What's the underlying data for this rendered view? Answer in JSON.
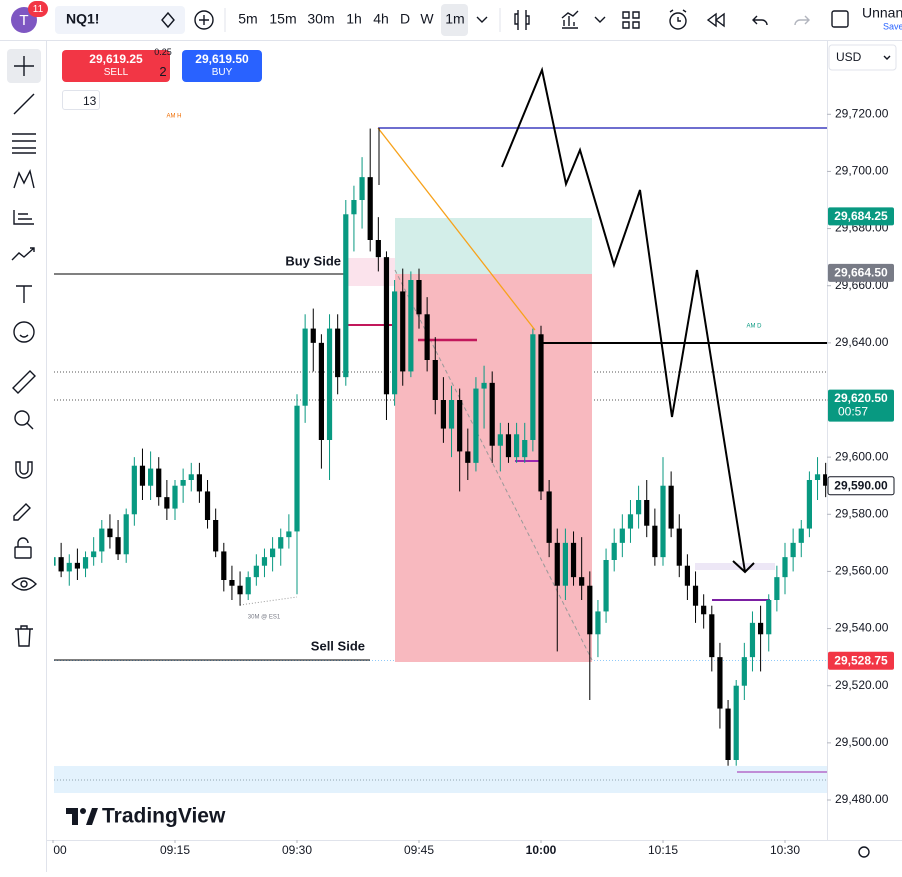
{
  "toolbar": {
    "avatar": "T",
    "notifications": "11",
    "symbol": "NQ1!",
    "intervals": [
      "5m",
      "15m",
      "30m",
      "1h",
      "4h",
      "D",
      "W",
      "1m"
    ],
    "layout_name": "Unnan",
    "save": "Save"
  },
  "order_panel": {
    "sell_price": "29,619.25",
    "sell": "SELL",
    "tick": "0.25",
    "quantity": "2",
    "buy_price": "29,619.50",
    "buy": "BUY",
    "indicators": "13"
  },
  "currency": "USD",
  "chart_data": {
    "type": "candlestick",
    "x": [
      "09:00",
      "09:01",
      "09:02",
      "09:03",
      "09:04",
      "09:05",
      "09:06",
      "09:07",
      "09:08",
      "09:09",
      "09:10",
      "09:11",
      "09:12",
      "09:13",
      "09:14",
      "09:15",
      "09:16",
      "09:17",
      "09:18",
      "09:19",
      "09:20",
      "09:21",
      "09:22",
      "09:23",
      "09:24",
      "09:25",
      "09:26",
      "09:27",
      "09:28",
      "09:29",
      "09:30",
      "09:31",
      "09:32",
      "09:33",
      "09:34",
      "09:35",
      "09:36",
      "09:37",
      "09:38",
      "09:39",
      "09:40",
      "09:41",
      "09:42",
      "09:43",
      "09:44",
      "09:45",
      "09:46",
      "09:47",
      "09:48",
      "09:49",
      "09:50",
      "09:51",
      "09:52",
      "09:53",
      "09:54",
      "09:55",
      "09:56",
      "09:57",
      "09:58",
      "09:59",
      "10:00",
      "10:01",
      "10:02",
      "10:03",
      "10:04",
      "10:05",
      "10:06",
      "10:07",
      "10:08",
      "10:09",
      "10:10",
      "10:11",
      "10:12",
      "10:13",
      "10:14",
      "10:15",
      "10:16",
      "10:17",
      "10:18",
      "10:19",
      "10:20",
      "10:21",
      "10:22",
      "10:23",
      "10:24",
      "10:25",
      "10:26",
      "10:27",
      "10:28",
      "10:29",
      "10:30",
      "10:31",
      "10:32",
      "10:33",
      "10:34",
      "10:35"
    ],
    "open": [
      29562,
      29565,
      29560,
      29563,
      29561,
      29565,
      29567,
      29575,
      29572,
      29566,
      29580,
      29597,
      29590,
      29596,
      29586,
      29582,
      29590,
      29592,
      29594,
      29588,
      29578,
      29567,
      29557,
      29555,
      29552,
      29558,
      29562,
      29565,
      29568,
      29572,
      29574,
      29618,
      29645,
      29640,
      29606,
      29645,
      29628,
      29685,
      29690,
      29698,
      29676,
      29670,
      29622,
      29658,
      29630,
      29662,
      29650,
      29634,
      29620,
      29610,
      29620,
      29602,
      29598,
      29624,
      29626,
      29604,
      29608,
      29600,
      29600,
      29606,
      29643,
      29588,
      29570,
      29555,
      29570,
      29558,
      29555,
      29538,
      29546,
      29564,
      29570,
      29575,
      29580,
      29585,
      29576,
      29565,
      29590,
      29575,
      29562,
      29555,
      29548,
      29545,
      29530,
      29512,
      29494,
      29520,
      29530,
      29542,
      29538,
      29550,
      29558,
      29565,
      29570,
      29575,
      29592,
      29594
    ],
    "high": [
      29568,
      29570,
      29566,
      29568,
      29567,
      29572,
      29578,
      29580,
      29578,
      29582,
      29600,
      29603,
      29602,
      29600,
      29592,
      29592,
      29596,
      29598,
      29598,
      29592,
      29582,
      29570,
      29562,
      29560,
      29560,
      29566,
      29568,
      29572,
      29575,
      29580,
      29622,
      29650,
      29652,
      29643,
      29650,
      29650,
      29690,
      29695,
      29705,
      29715,
      29684,
      29672,
      29662,
      29666,
      29665,
      29666,
      29656,
      29642,
      29628,
      29625,
      29624,
      29610,
      29628,
      29632,
      29630,
      29612,
      29612,
      29612,
      29612,
      29645,
      29646,
      29592,
      29575,
      29575,
      29574,
      29572,
      29560,
      29550,
      29568,
      29575,
      29580,
      29585,
      29590,
      29592,
      29582,
      29600,
      29595,
      29580,
      29566,
      29560,
      29552,
      29548,
      29535,
      29515,
      29522,
      29535,
      29546,
      29548,
      29552,
      29562,
      29570,
      29575,
      29578,
      29595,
      29600,
      29598
    ],
    "low": [
      29555,
      29558,
      29555,
      29557,
      29558,
      29562,
      29563,
      29568,
      29564,
      29563,
      29576,
      29585,
      29585,
      29583,
      29578,
      29578,
      29584,
      29588,
      29584,
      29575,
      29565,
      29553,
      29550,
      29548,
      29550,
      29555,
      29558,
      29560,
      29562,
      29568,
      29552,
      29612,
      29630,
      29596,
      29592,
      29622,
      29625,
      29672,
      29680,
      29672,
      29665,
      29613,
      29618,
      29625,
      29628,
      29645,
      29630,
      29615,
      29605,
      29600,
      29588,
      29592,
      29595,
      29610,
      29598,
      29595,
      29598,
      29598,
      29598,
      29602,
      29585,
      29565,
      29532,
      29550,
      29555,
      29550,
      29515,
      29530,
      29542,
      29560,
      29565,
      29570,
      29575,
      29572,
      29562,
      29562,
      29572,
      29558,
      29550,
      29542,
      29540,
      29525,
      29505,
      29492,
      29492,
      29515,
      29525,
      29525,
      29532,
      29546,
      29552,
      29560,
      29565,
      29572,
      29585,
      29586
    ],
    "close": [
      29565,
      29560,
      29563,
      29561,
      29565,
      29567,
      29575,
      29572,
      29566,
      29580,
      29597,
      29590,
      29596,
      29586,
      29582,
      29590,
      29592,
      29594,
      29588,
      29578,
      29567,
      29557,
      29555,
      29552,
      29558,
      29562,
      29565,
      29568,
      29572,
      29574,
      29618,
      29645,
      29640,
      29606,
      29645,
      29628,
      29685,
      29690,
      29698,
      29676,
      29670,
      29622,
      29658,
      29630,
      29662,
      29650,
      29634,
      29620,
      29610,
      29620,
      29602,
      29598,
      29624,
      29626,
      29604,
      29608,
      29600,
      29608,
      29606,
      29643,
      29588,
      29570,
      29555,
      29570,
      29558,
      29555,
      29538,
      29546,
      29564,
      29570,
      29575,
      29580,
      29585,
      29576,
      29565,
      29590,
      29575,
      29562,
      29555,
      29548,
      29545,
      29530,
      29512,
      29494,
      29520,
      29530,
      29542,
      29538,
      29550,
      29558,
      29565,
      29570,
      29575,
      29592,
      29594,
      29590
    ],
    "up_color": "#089981",
    "down_color": "#000000",
    "ylim": [
      29466,
      29746
    ],
    "yticks": [
      {
        "value": 29480,
        "label": "29,480.00"
      },
      {
        "value": 29500,
        "label": "29,500.00"
      },
      {
        "value": 29520,
        "label": "29,520.00"
      },
      {
        "value": 29540,
        "label": "29,540.00"
      },
      {
        "value": 29560,
        "label": "29,560.00"
      },
      {
        "value": 29580,
        "label": "29,580.00"
      },
      {
        "value": 29600,
        "label": "29,600.00"
      },
      {
        "value": 29620,
        "label": "29,620.00"
      },
      {
        "value": 29640,
        "label": "29,640.00"
      },
      {
        "value": 29660,
        "label": "29,660.00"
      },
      {
        "value": 29680,
        "label": "29,680.00"
      },
      {
        "value": 29700,
        "label": "29,700.00"
      },
      {
        "value": 29720,
        "label": "29,720.00"
      }
    ],
    "xticks": [
      {
        "value": "09:00",
        "label": "00"
      },
      "09:15",
      "09:30",
      "09:45",
      "10:00",
      "10:15",
      "10:30"
    ],
    "price_labels": [
      {
        "value": 29684.25,
        "label": "29,684.25",
        "color": "#089981"
      },
      {
        "value": 29664.5,
        "label": "29,664.50",
        "color": "#787b86"
      },
      {
        "value": 29620.5,
        "label": "29,620.50",
        "color": "#089981",
        "countdown": "00:57"
      },
      {
        "value": 29590,
        "label": "29,590.00",
        "color": "#ffffff"
      },
      {
        "value": 29528.75,
        "label": "29,528.75",
        "color": "#f23645"
      }
    ],
    "annotations": [
      "Buy Side",
      "Sell Side",
      "AM H",
      "AM D",
      "30M @ ES1"
    ],
    "watermark": "TradingView"
  }
}
